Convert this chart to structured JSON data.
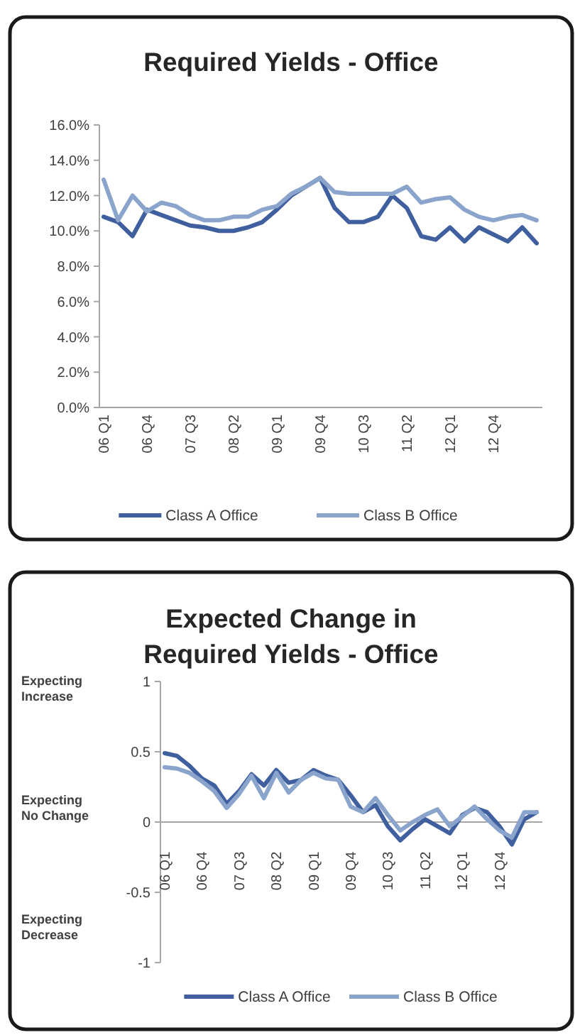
{
  "chart_data": [
    {
      "type": "line",
      "title": "Required Yields - Office",
      "categories": [
        "06 Q1",
        null,
        null,
        "06 Q4",
        null,
        null,
        "07 Q3",
        null,
        null,
        "08 Q2",
        null,
        null,
        "09 Q1",
        null,
        null,
        "09 Q4",
        null,
        null,
        "10 Q3",
        null,
        null,
        "11 Q2",
        null,
        null,
        "12 Q1",
        null,
        null,
        "12 Q4",
        null,
        null,
        null
      ],
      "series": [
        {
          "name": "Class A Office",
          "color": "#3f5f9f",
          "values": [
            10.8,
            10.5,
            9.7,
            11.2,
            10.9,
            10.6,
            10.3,
            10.2,
            10.0,
            10.0,
            10.2,
            10.5,
            11.2,
            12.0,
            12.5,
            13.0,
            11.3,
            10.5,
            10.5,
            10.8,
            12.0,
            11.3,
            9.7,
            9.5,
            10.2,
            9.4,
            10.2,
            9.8,
            9.4,
            10.2,
            9.3
          ]
        },
        {
          "name": "Class B Office",
          "color": "#8aa4cc",
          "values": [
            12.9,
            10.6,
            12.0,
            11.1,
            11.6,
            11.4,
            10.9,
            10.6,
            10.6,
            10.8,
            10.8,
            11.2,
            11.4,
            12.1,
            12.5,
            13.0,
            12.2,
            12.1,
            12.1,
            12.1,
            12.1,
            12.5,
            11.6,
            11.8,
            11.9,
            11.2,
            10.8,
            10.6,
            10.8,
            10.9,
            10.6
          ]
        }
      ],
      "ylim": [
        0,
        16
      ],
      "yticks": [
        {
          "value": 0,
          "label": "0.0%"
        },
        {
          "value": 2,
          "label": "2.0%"
        },
        {
          "value": 4,
          "label": "4.0%"
        },
        {
          "value": 6,
          "label": "6.0%"
        },
        {
          "value": 8,
          "label": "8.0%"
        },
        {
          "value": 10,
          "label": "10.0%"
        },
        {
          "value": 12,
          "label": "12.0%"
        },
        {
          "value": 14,
          "label": "14.0%"
        },
        {
          "value": 16,
          "label": "16.0%"
        }
      ],
      "legend": "bottom"
    },
    {
      "type": "line",
      "title": "Expected Change in\nRequired Yields - Office",
      "categories": [
        "06 Q1",
        null,
        null,
        "06 Q4",
        null,
        null,
        "07 Q3",
        null,
        null,
        "08 Q2",
        null,
        null,
        "09 Q1",
        null,
        null,
        "09 Q4",
        null,
        null,
        "10 Q3",
        null,
        null,
        "11 Q2",
        null,
        null,
        "12 Q1",
        null,
        null,
        "12 Q4",
        null,
        null,
        null
      ],
      "series": [
        {
          "name": "Class A Office",
          "color": "#3f5f9f",
          "values": [
            0.49,
            0.47,
            0.4,
            0.31,
            0.26,
            0.13,
            0.22,
            0.34,
            0.26,
            0.37,
            0.28,
            0.3,
            0.37,
            0.33,
            0.3,
            0.19,
            0.07,
            0.12,
            -0.03,
            -0.13,
            -0.05,
            0.02,
            -0.03,
            -0.08,
            0.05,
            0.1,
            0.07,
            -0.03,
            -0.16,
            0.02,
            0.07
          ]
        },
        {
          "name": "Class B Office",
          "color": "#8aa4cc",
          "values": [
            0.39,
            0.38,
            0.35,
            0.29,
            0.22,
            0.1,
            0.2,
            0.33,
            0.17,
            0.35,
            0.21,
            0.3,
            0.35,
            0.31,
            0.3,
            0.11,
            0.07,
            0.17,
            0.05,
            -0.06,
            0.0,
            0.05,
            0.09,
            -0.03,
            0.04,
            0.11,
            0.02,
            -0.06,
            -0.11,
            0.07,
            0.07
          ]
        }
      ],
      "ylim": [
        -1,
        1
      ],
      "yticks": [
        -1,
        -0.5,
        0,
        0.5,
        1
      ],
      "annotations": [
        "Expecting\nIncrease",
        "Expecting\nNo Change",
        "Expecting\nDecrease"
      ],
      "legend": "bottom"
    }
  ]
}
